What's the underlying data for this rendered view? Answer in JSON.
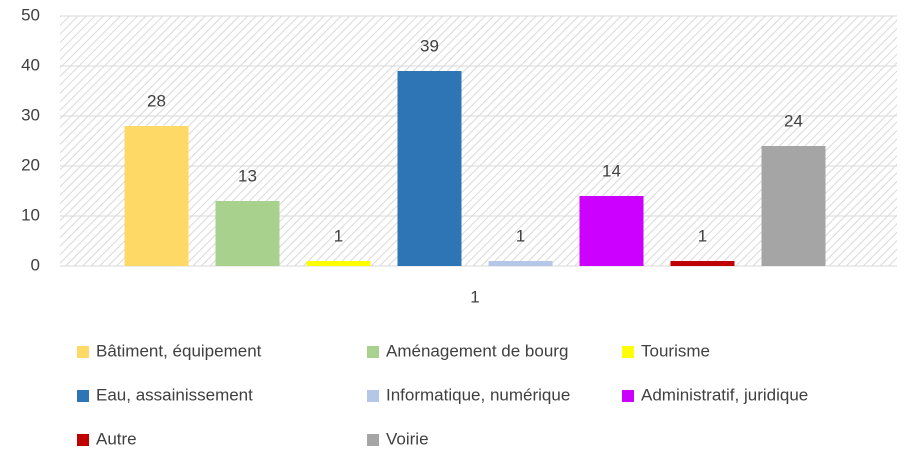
{
  "chart_data": {
    "type": "bar",
    "categories": [
      "1"
    ],
    "series": [
      {
        "name": "Bâtiment, équipement",
        "color": "#FFD966",
        "values": [
          28
        ]
      },
      {
        "name": "Aménagement de bourg",
        "color": "#A9D18E",
        "values": [
          13
        ]
      },
      {
        "name": "Tourisme",
        "color": "#FFFF00",
        "values": [
          1
        ]
      },
      {
        "name": "Eau, assainissement",
        "color": "#2E75B6",
        "values": [
          39
        ]
      },
      {
        "name": "Informatique, numérique",
        "color": "#B4C7E7",
        "values": [
          1
        ]
      },
      {
        "name": "Administratif, juridique",
        "color": "#CC00FF",
        "values": [
          14
        ]
      },
      {
        "name": "Autre",
        "color": "#C00000",
        "values": [
          1
        ]
      },
      {
        "name": "Voirie",
        "color": "#A5A5A5",
        "values": [
          24
        ]
      }
    ],
    "ylim": [
      0,
      50
    ],
    "yticks": [
      0,
      10,
      20,
      30,
      40,
      50
    ],
    "grid": true,
    "legend": "bottom"
  }
}
